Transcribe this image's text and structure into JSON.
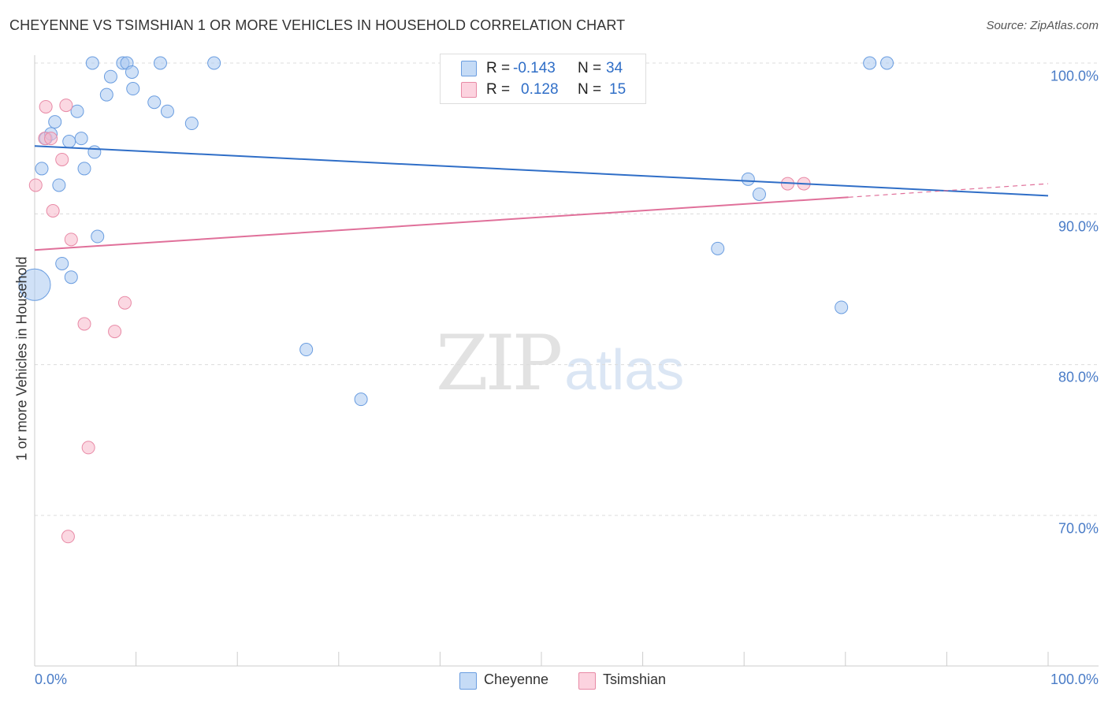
{
  "title": "CHEYENNE VS TSIMSHIAN 1 OR MORE VEHICLES IN HOUSEHOLD CORRELATION CHART",
  "source": "Source: ZipAtlas.com",
  "watermark": {
    "zip": "ZIP",
    "atlas": "atlas"
  },
  "legend": {
    "rows": [
      {
        "r_label": "R =",
        "r_value": "-0.143",
        "n_label": "N =",
        "n_value": "34",
        "color": "#a9c8f0"
      },
      {
        "r_label": "R =",
        "r_value": "0.128",
        "n_label": "N =",
        "n_value": "15",
        "color": "#f7b8cb"
      }
    ]
  },
  "bottom_legend": [
    {
      "label": "Cheyenne",
      "color": "#a9c8f0"
    },
    {
      "label": "Tsimshian",
      "color": "#f7b8cb"
    }
  ],
  "chart_data": {
    "type": "scatter",
    "title": "CHEYENNE VS TSIMSHIAN 1 OR MORE VEHICLES IN HOUSEHOLD CORRELATION CHART",
    "xlabel": "",
    "ylabel": "1 or more Vehicles in Household",
    "xlim": [
      0,
      100
    ],
    "ylim": [
      60,
      101.5
    ],
    "x_tick_labels": [
      "0.0%",
      "100.0%"
    ],
    "y_ticks": [
      70,
      80,
      90,
      100
    ],
    "y_tick_labels": [
      "70.0%",
      "80.0%",
      "90.0%",
      "100.0%"
    ],
    "grid": true,
    "series": [
      {
        "name": "Cheyenne",
        "color": "#a9c8f0",
        "stroke": "#6a9de0",
        "trend": {
          "x0": 0,
          "y0": 94.5,
          "x1": 100,
          "y1": 91.2,
          "color": "#2f6ec7"
        },
        "points": [
          {
            "x": 0.0,
            "y": 85.3,
            "big": true
          },
          {
            "x": 0.7,
            "y": 93.0
          },
          {
            "x": 1.1,
            "y": 95.0
          },
          {
            "x": 1.6,
            "y": 95.3
          },
          {
            "x": 2.0,
            "y": 96.1
          },
          {
            "x": 2.4,
            "y": 91.9
          },
          {
            "x": 2.7,
            "y": 86.7
          },
          {
            "x": 3.4,
            "y": 94.8
          },
          {
            "x": 3.6,
            "y": 85.8
          },
          {
            "x": 4.2,
            "y": 96.8
          },
          {
            "x": 4.6,
            "y": 95.0
          },
          {
            "x": 4.9,
            "y": 93.0
          },
          {
            "x": 5.7,
            "y": 100.0
          },
          {
            "x": 5.9,
            "y": 94.1
          },
          {
            "x": 6.2,
            "y": 88.5
          },
          {
            "x": 7.1,
            "y": 97.9
          },
          {
            "x": 7.5,
            "y": 99.1
          },
          {
            "x": 8.7,
            "y": 100.0
          },
          {
            "x": 9.1,
            "y": 100.0
          },
          {
            "x": 9.6,
            "y": 99.4
          },
          {
            "x": 9.7,
            "y": 98.3
          },
          {
            "x": 11.8,
            "y": 97.4
          },
          {
            "x": 12.4,
            "y": 100.0
          },
          {
            "x": 13.1,
            "y": 96.8
          },
          {
            "x": 15.5,
            "y": 96.0
          },
          {
            "x": 17.7,
            "y": 100.0
          },
          {
            "x": 26.8,
            "y": 81.0
          },
          {
            "x": 32.2,
            "y": 77.7
          },
          {
            "x": 67.4,
            "y": 87.7
          },
          {
            "x": 70.4,
            "y": 92.3
          },
          {
            "x": 71.5,
            "y": 91.3
          },
          {
            "x": 79.6,
            "y": 83.8
          },
          {
            "x": 82.4,
            "y": 100.0
          },
          {
            "x": 84.1,
            "y": 100.0
          }
        ]
      },
      {
        "name": "Tsimshian",
        "color": "#f7b8cb",
        "stroke": "#e88aa6",
        "trend": {
          "x0": 0,
          "y0": 87.6,
          "x1": 80.3,
          "y1": 91.1,
          "color": "#e0709a",
          "dashed_to": {
            "x": 100,
            "y": 92.0
          }
        },
        "points": [
          {
            "x": 0.1,
            "y": 91.9
          },
          {
            "x": 1.0,
            "y": 95.0
          },
          {
            "x": 1.1,
            "y": 97.1
          },
          {
            "x": 1.6,
            "y": 95.0
          },
          {
            "x": 1.8,
            "y": 90.2
          },
          {
            "x": 2.7,
            "y": 93.6
          },
          {
            "x": 3.1,
            "y": 97.2
          },
          {
            "x": 3.3,
            "y": 68.6
          },
          {
            "x": 3.6,
            "y": 88.3
          },
          {
            "x": 4.9,
            "y": 82.7
          },
          {
            "x": 5.3,
            "y": 74.5
          },
          {
            "x": 7.9,
            "y": 82.2
          },
          {
            "x": 8.9,
            "y": 84.1
          },
          {
            "x": 74.3,
            "y": 92.0
          },
          {
            "x": 75.9,
            "y": 92.0
          }
        ]
      }
    ]
  }
}
